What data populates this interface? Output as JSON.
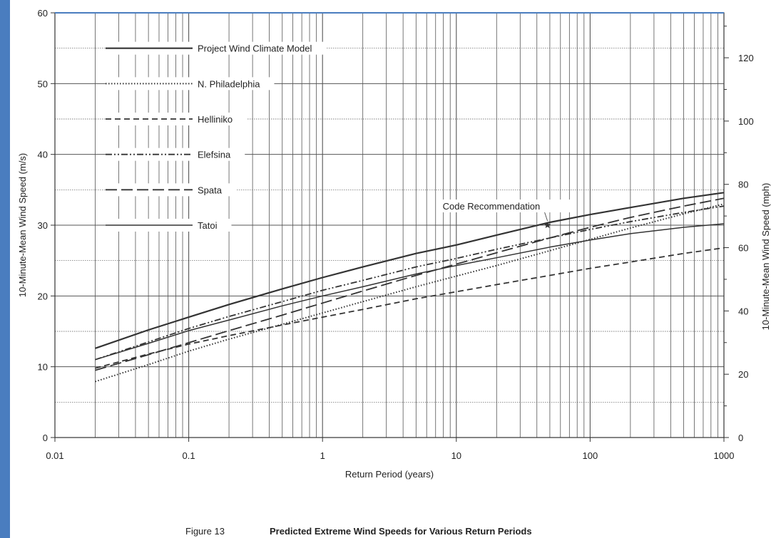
{
  "figure": {
    "label": "Figure 13",
    "title": "Predicted Extreme Wind Speeds for Various Return Periods"
  },
  "colors": {
    "ink": "#333333",
    "grid": "#555555",
    "background": "#ffffff",
    "frame_accent": "#4a7dbf"
  },
  "chart_data": {
    "type": "line",
    "title": "Predicted Extreme Wind Speeds for Various Return Periods",
    "xlabel": "Return Period (years)",
    "ylabel": "10-Minute-Mean Wind Speed (m/s)",
    "y2label": "10-Minute-Mean Wind Speed (mph)",
    "x_scale": "log",
    "xlim": [
      0.01,
      1000
    ],
    "ylim": [
      0,
      60
    ],
    "y2lim": [
      0,
      134.2
    ],
    "x_ticks": [
      {
        "value": 0.01,
        "label": "0.01"
      },
      {
        "value": 0.1,
        "label": "0.1"
      },
      {
        "value": 1,
        "label": "1"
      },
      {
        "value": 10,
        "label": "10"
      },
      {
        "value": 100,
        "label": "100"
      },
      {
        "value": 1000,
        "label": "1000"
      }
    ],
    "y_ticks": [
      {
        "value": 0,
        "label": "0"
      },
      {
        "value": 10,
        "label": "10"
      },
      {
        "value": 20,
        "label": "20"
      },
      {
        "value": 30,
        "label": "30"
      },
      {
        "value": 40,
        "label": "40"
      },
      {
        "value": 50,
        "label": "50"
      },
      {
        "value": 60,
        "label": "60"
      }
    ],
    "y2_ticks": [
      {
        "value": 0,
        "label": "0"
      },
      {
        "value": 20,
        "label": "20"
      },
      {
        "value": 40,
        "label": "40"
      },
      {
        "value": 60,
        "label": "60"
      },
      {
        "value": 80,
        "label": "80"
      },
      {
        "value": 100,
        "label": "100"
      },
      {
        "value": 120,
        "label": "120"
      }
    ],
    "grid": true,
    "legend_position": "top-left",
    "series": [
      {
        "name": "Project Wind Climate Model",
        "style": "solid",
        "x": [
          0.02,
          0.05,
          0.1,
          0.2,
          0.5,
          1,
          2,
          5,
          10,
          20,
          50,
          100,
          200,
          500,
          1000
        ],
        "y": [
          12.6,
          15.2,
          17.0,
          18.8,
          21.0,
          22.6,
          24.1,
          26.0,
          27.2,
          28.6,
          30.4,
          31.5,
          32.5,
          33.8,
          34.6
        ]
      },
      {
        "name": "N. Philadelphia",
        "style": "dotted",
        "x": [
          0.02,
          0.05,
          0.1,
          0.2,
          0.5,
          1,
          2,
          5,
          10,
          20,
          50,
          100,
          200,
          500,
          1000
        ],
        "y": [
          7.9,
          10.3,
          12.2,
          13.9,
          16.0,
          17.6,
          19.2,
          21.3,
          22.8,
          24.3,
          26.4,
          28.0,
          29.6,
          31.6,
          33.0
        ]
      },
      {
        "name": "Helliniko",
        "style": "dashed",
        "x": [
          0.02,
          0.05,
          0.1,
          0.2,
          0.5,
          1,
          2,
          5,
          10,
          20,
          50,
          100,
          200,
          500,
          1000
        ],
        "y": [
          9.8,
          11.8,
          13.2,
          14.4,
          15.9,
          17.0,
          18.1,
          19.6,
          20.6,
          21.6,
          22.9,
          23.9,
          24.8,
          26.0,
          26.8
        ]
      },
      {
        "name": "Elefsina",
        "style": "dash-dot-dot",
        "x": [
          0.02,
          0.05,
          0.1,
          0.2,
          0.5,
          1,
          2,
          5,
          10,
          20,
          50,
          100,
          200,
          500,
          1000
        ],
        "y": [
          11.0,
          13.5,
          15.4,
          17.1,
          19.2,
          20.8,
          22.2,
          24.1,
          25.3,
          26.6,
          28.2,
          29.4,
          30.5,
          31.8,
          32.7
        ]
      },
      {
        "name": "Spata",
        "style": "long-dash",
        "x": [
          0.02,
          0.05,
          0.1,
          0.2,
          0.5,
          1,
          2,
          5,
          10,
          20,
          50,
          100,
          200,
          500,
          1000
        ],
        "y": [
          9.5,
          11.7,
          13.4,
          15.1,
          17.3,
          19.0,
          20.7,
          22.9,
          24.5,
          26.1,
          28.2,
          29.7,
          31.1,
          32.7,
          33.8
        ]
      },
      {
        "name": "Tatoi",
        "style": "solid-thin",
        "x": [
          0.02,
          0.05,
          0.1,
          0.2,
          0.5,
          1,
          2,
          5,
          10,
          20,
          50,
          100,
          200,
          500,
          1000
        ],
        "y": [
          11.0,
          13.3,
          15.1,
          16.6,
          18.6,
          20.0,
          21.3,
          23.1,
          24.3,
          25.4,
          26.9,
          27.9,
          28.8,
          29.7,
          30.2
        ]
      }
    ],
    "annotations": [
      {
        "text": "Code Recommendation",
        "x": 48,
        "y": 30.0,
        "marker": "star"
      }
    ]
  }
}
